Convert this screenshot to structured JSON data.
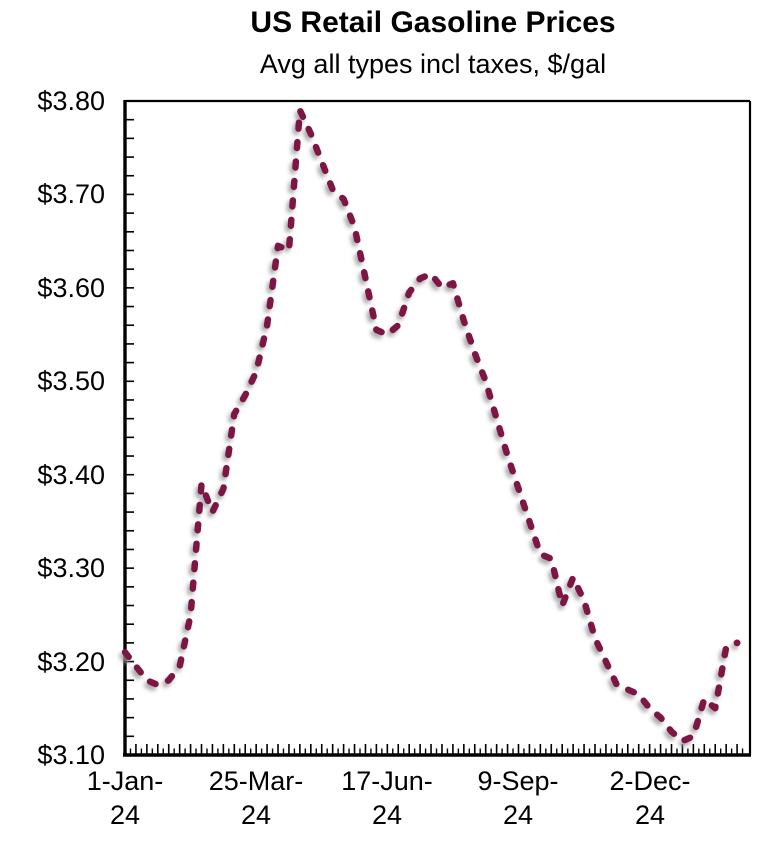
{
  "title": "US Retail Gasoline Prices",
  "subtitle": "Avg all types incl taxes, $/gal",
  "y_axis": {
    "labels": [
      "$3.80",
      "$3.70",
      "$3.60",
      "$3.50",
      "$3.40",
      "$3.30",
      "$3.20",
      "$3.10"
    ]
  },
  "x_axis": {
    "labels": [
      {
        "l1": "1-Jan-",
        "l2": "24"
      },
      {
        "l1": "25-Mar-",
        "l2": "24"
      },
      {
        "l1": "17-Jun-",
        "l2": "24"
      },
      {
        "l1": "9-Sep-",
        "l2": "24"
      },
      {
        "l1": "2-Dec-",
        "l2": "24"
      }
    ]
  },
  "chart_data": {
    "type": "line",
    "title": "US Retail Gasoline Prices",
    "subtitle": "Avg all types incl taxes, $/gal",
    "xlabel": "",
    "ylabel": "$/gal",
    "ylim": [
      3.1,
      3.8
    ],
    "ytick_step": 0.1,
    "ytick_labels": [
      "$3.80",
      "$3.70",
      "$3.60",
      "$3.50",
      "$3.40",
      "$3.30",
      "$3.20",
      "$3.10"
    ],
    "xtick_labels": [
      "1-Jan-24",
      "25-Mar-24",
      "17-Jun-24",
      "9-Sep-24",
      "2-Dec-24"
    ],
    "xtick_week_indices": [
      0,
      12,
      24,
      36,
      48
    ],
    "grid": false,
    "legend": "none",
    "frequency": "weekly",
    "series": [
      {
        "name": "US retail gasoline price, avg all types incl taxes ($/gal)",
        "line_style": "dashed",
        "color": "#7D1945",
        "shadow": true,
        "x": [
          "1-Jan-24",
          "8-Jan-24",
          "15-Jan-24",
          "22-Jan-24",
          "29-Jan-24",
          "5-Feb-24",
          "12-Feb-24",
          "19-Feb-24",
          "26-Feb-24",
          "4-Mar-24",
          "11-Mar-24",
          "18-Mar-24",
          "25-Mar-24",
          "1-Apr-24",
          "8-Apr-24",
          "15-Apr-24",
          "22-Apr-24",
          "29-Apr-24",
          "6-May-24",
          "13-May-24",
          "20-May-24",
          "27-May-24",
          "3-Jun-24",
          "10-Jun-24",
          "17-Jun-24",
          "24-Jun-24",
          "1-Jul-24",
          "8-Jul-24",
          "15-Jul-24",
          "22-Jul-24",
          "29-Jul-24",
          "5-Aug-24",
          "12-Aug-24",
          "19-Aug-24",
          "26-Aug-24",
          "2-Sep-24",
          "9-Sep-24",
          "16-Sep-24",
          "23-Sep-24",
          "30-Sep-24",
          "7-Oct-24",
          "14-Oct-24",
          "21-Oct-24",
          "28-Oct-24",
          "4-Nov-24",
          "11-Nov-24",
          "18-Nov-24",
          "25-Nov-24",
          "2-Dec-24",
          "9-Dec-24",
          "16-Dec-24",
          "23-Dec-24",
          "30-Dec-24",
          "6-Jan-25",
          "13-Jan-25",
          "20-Jan-25",
          "27-Jan-25"
        ],
        "values": [
          3.21,
          3.195,
          3.18,
          3.175,
          3.18,
          3.195,
          3.25,
          3.39,
          3.36,
          3.385,
          3.465,
          3.485,
          3.51,
          3.56,
          3.645,
          3.64,
          3.79,
          3.765,
          3.735,
          3.705,
          3.695,
          3.665,
          3.61,
          3.555,
          3.55,
          3.56,
          3.595,
          3.61,
          3.615,
          3.6,
          3.605,
          3.565,
          3.53,
          3.5,
          3.46,
          3.42,
          3.385,
          3.35,
          3.315,
          3.31,
          3.26,
          3.29,
          3.265,
          3.225,
          3.2,
          3.175,
          3.17,
          3.165,
          3.15,
          3.14,
          3.125,
          3.115,
          3.12,
          3.16,
          3.15,
          3.215,
          3.22
        ]
      }
    ]
  }
}
